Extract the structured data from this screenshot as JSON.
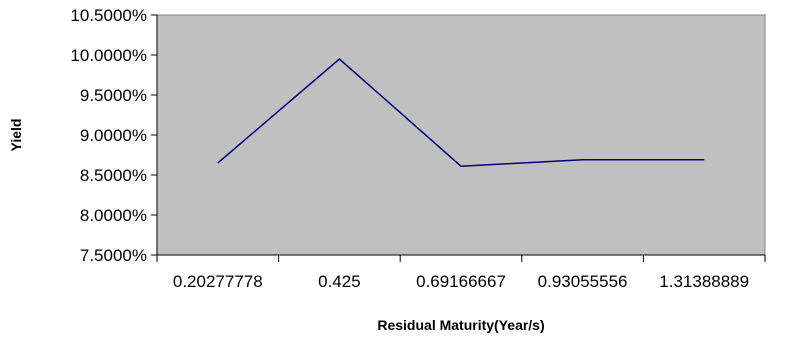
{
  "chart_data": {
    "type": "line",
    "title": "",
    "xlabel": "Residual Maturity(Year/s)",
    "ylabel": "Yield",
    "categories": [
      "0.20277778",
      "0.425",
      "0.69166667",
      "0.93055556",
      "1.31388889"
    ],
    "series": [
      {
        "values": [
          0.0865,
          0.0995,
          0.0861,
          0.0869,
          0.0869
        ]
      }
    ],
    "ylim": [
      0.075,
      0.105
    ],
    "yticks": [
      0.075,
      0.08,
      0.085,
      0.09,
      0.095,
      0.1,
      0.105
    ],
    "ytick_labels": [
      "7.5000%",
      "8.0000%",
      "8.5000%",
      "9.0000%",
      "9.5000%",
      "10.0000%",
      "10.5000%"
    ],
    "grid": false,
    "plot_background": "#C0C0C0",
    "line_color": "#000080"
  }
}
